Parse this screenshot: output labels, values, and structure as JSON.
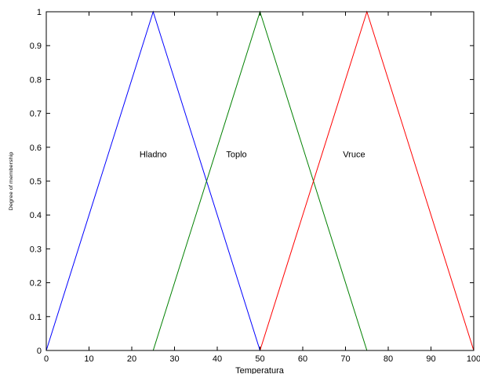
{
  "chart_data": {
    "type": "line",
    "xlabel": "Temperatura",
    "ylabel": "Degree of membership",
    "xlim": [
      0,
      100
    ],
    "ylim": [
      0,
      1
    ],
    "x_ticks": [
      "0",
      "10",
      "20",
      "30",
      "40",
      "50",
      "60",
      "70",
      "80",
      "90",
      "100"
    ],
    "y_ticks": [
      "0",
      "0.1",
      "0.2",
      "0.3",
      "0.4",
      "0.5",
      "0.6",
      "0.7",
      "0.8",
      "0.9",
      "1"
    ],
    "grid": false,
    "series": [
      {
        "name": "Hladno",
        "color": "#0000ff",
        "x": [
          0,
          25,
          50,
          100
        ],
        "y": [
          0,
          1,
          0,
          0
        ]
      },
      {
        "name": "Toplo",
        "color": "#008000",
        "x": [
          0,
          25,
          50,
          75,
          100
        ],
        "y": [
          0,
          0,
          1,
          0,
          0
        ]
      },
      {
        "name": "Vruce",
        "color": "#ff0000",
        "x": [
          0,
          50,
          75,
          100
        ],
        "y": [
          0,
          0,
          1,
          0
        ]
      }
    ],
    "annotations": [
      {
        "text": "Hladno",
        "x": 25,
        "y": 0.58
      },
      {
        "text": "Toplo",
        "x": 44.5,
        "y": 0.58
      },
      {
        "text": "Vruce",
        "x": 72,
        "y": 0.58
      }
    ]
  }
}
